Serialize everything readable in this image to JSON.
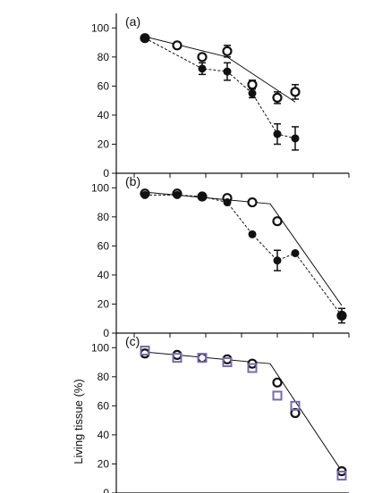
{
  "figure": {
    "ylabel": "Living tissue (%)"
  },
  "chart_data": [
    {
      "type": "line",
      "panel_label": "(a)",
      "ylim": [
        0,
        110
      ],
      "yticks": [
        0,
        20,
        40,
        60,
        80,
        100
      ],
      "ytick_labels": [
        "0",
        "20",
        "40",
        "60",
        "80",
        "100"
      ],
      "xlim": [
        0,
        6.5
      ],
      "xticks": [
        0.5,
        1.5,
        2.5,
        3.5,
        4.5,
        5.5,
        6.5
      ],
      "series": [
        {
          "style": "open-circle-solid",
          "x": [
            0.8,
            1.7,
            2.4,
            3.1,
            3.8,
            4.5,
            5.0
          ],
          "y": [
            93,
            88,
            80,
            84,
            61,
            52,
            56
          ],
          "err": [
            2,
            2,
            2,
            4,
            3,
            4,
            5
          ],
          "line_x": [
            0.8,
            3.1,
            5.0
          ],
          "line_y": [
            94,
            80,
            49
          ]
        },
        {
          "style": "filled-circle-dashed",
          "x": [
            0.8,
            2.4,
            3.1,
            3.8,
            4.5,
            5.0
          ],
          "y": [
            93,
            72,
            70,
            55,
            27,
            24
          ],
          "err": [
            1,
            4,
            6,
            3,
            7,
            8
          ]
        }
      ]
    },
    {
      "type": "line",
      "panel_label": "(b)",
      "ylim": [
        0,
        110
      ],
      "yticks": [
        0,
        20,
        40,
        60,
        80,
        100
      ],
      "ytick_labels": [
        "0",
        "20",
        "40",
        "60",
        "80",
        "100"
      ],
      "xlim": [
        0,
        6.5
      ],
      "xticks": [
        0.5,
        1.5,
        2.5,
        3.5,
        4.5,
        5.5,
        6.5
      ],
      "series": [
        {
          "style": "open-circle-solid",
          "x": [
            0.8,
            1.7,
            2.4,
            3.1,
            3.8,
            4.5,
            6.3
          ],
          "y": [
            96,
            96,
            94,
            93,
            90,
            77,
            12
          ],
          "err": [
            1,
            1,
            1,
            1,
            1,
            2,
            2
          ],
          "line_x": [
            0.8,
            4.3,
            6.3
          ],
          "line_y": [
            97,
            89,
            19
          ]
        },
        {
          "style": "filled-circle-dashed",
          "x": [
            0.8,
            1.7,
            2.4,
            3.1,
            3.8,
            4.5,
            5.0,
            6.3
          ],
          "y": [
            95,
            95,
            94,
            90,
            68,
            50,
            55,
            12
          ],
          "err": [
            1,
            1,
            1,
            1,
            1,
            7,
            1,
            5
          ]
        }
      ]
    },
    {
      "type": "line",
      "panel_label": "(c)",
      "ylim": [
        0,
        110
      ],
      "yticks": [
        0,
        20,
        40,
        60,
        80,
        100
      ],
      "ytick_labels": [
        "0",
        "20",
        "40",
        "60",
        "80",
        "100"
      ],
      "xlim": [
        0,
        6.5
      ],
      "xticks": [
        0.5,
        1.5,
        2.5,
        3.5,
        4.5,
        5.5,
        6.5
      ],
      "series": [
        {
          "style": "open-circle-solid",
          "x": [
            0.8,
            1.7,
            2.4,
            3.1,
            3.8,
            4.5,
            5.0,
            6.3
          ],
          "y": [
            96,
            95,
            93,
            92,
            89,
            76,
            55,
            15
          ],
          "err": [
            1,
            1,
            1,
            1,
            1,
            1,
            1,
            1
          ],
          "line_x": [
            0.8,
            4.3,
            6.3
          ],
          "line_y": [
            97,
            89,
            15
          ]
        },
        {
          "style": "open-square",
          "color": "#7a6aa6",
          "x": [
            0.8,
            1.7,
            2.4,
            3.1,
            3.8,
            4.5,
            5.0,
            6.3
          ],
          "y": [
            98,
            93,
            93,
            90,
            86,
            67,
            60,
            12
          ],
          "err": [
            0,
            0,
            0,
            0,
            0,
            0,
            0,
            0
          ]
        }
      ]
    }
  ]
}
